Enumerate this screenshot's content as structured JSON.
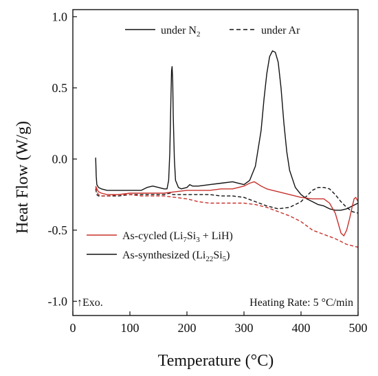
{
  "chart_data": {
    "type": "line",
    "title": "",
    "xlabel": "Temperature (°C)",
    "ylabel": "Heat Flow (W/g)",
    "xlim": [
      0,
      500
    ],
    "ylim": [
      -1.1,
      1.05
    ],
    "xticks": [
      0,
      100,
      200,
      300,
      400,
      500
    ],
    "yticks": [
      -1.0,
      -0.5,
      0.0,
      0.5,
      1.0
    ],
    "xtick_labels": [
      "0",
      "100",
      "200",
      "300",
      "400",
      "500"
    ],
    "ytick_labels": [
      "-1.0",
      "-0.5",
      "0.0",
      "0.5",
      "1.0"
    ],
    "grid": false,
    "legends": {
      "atmosphere": {
        "placement": "top",
        "entries": [
          {
            "label": "under N",
            "sub": "2",
            "style": "solid"
          },
          {
            "label": "under Ar",
            "style": "dashed"
          }
        ]
      },
      "sample": {
        "placement": "lower-left",
        "entries": [
          {
            "prefix": "As-cycled (Li",
            "s1": "7",
            "mid": "Si",
            "s2": "3",
            "suffix": " + LiH)",
            "color": "#c8302a"
          },
          {
            "prefix": "As-synthesized (Li",
            "s1": "22",
            "mid": "Si",
            "s2": "5",
            "suffix": ")",
            "color": "#111111"
          }
        ]
      }
    },
    "annotations": {
      "exo": "↑Exo.",
      "rate": "Heating Rate: 5 °C/min"
    },
    "series": [
      {
        "sample": "As-synthesized",
        "atmosphere": "N2",
        "color": "#111111",
        "dash": false,
        "x": [
          40,
          41,
          42,
          45,
          50,
          60,
          80,
          100,
          120,
          130,
          140,
          150,
          160,
          165,
          168,
          170,
          172,
          173,
          174,
          175,
          176,
          178,
          180,
          185,
          190,
          200,
          205,
          210,
          220,
          240,
          260,
          280,
          300,
          310,
          320,
          330,
          335,
          340,
          345,
          350,
          355,
          360,
          365,
          370,
          375,
          380,
          390,
          400,
          410,
          420,
          430,
          440,
          450,
          460,
          470,
          480,
          490,
          500
        ],
        "y": [
          0.01,
          -0.12,
          -0.18,
          -0.2,
          -0.21,
          -0.22,
          -0.22,
          -0.22,
          -0.22,
          -0.2,
          -0.19,
          -0.2,
          -0.21,
          -0.21,
          -0.15,
          0.05,
          0.45,
          0.62,
          0.65,
          0.55,
          0.3,
          0.0,
          -0.15,
          -0.2,
          -0.21,
          -0.2,
          -0.18,
          -0.19,
          -0.19,
          -0.18,
          -0.17,
          -0.16,
          -0.18,
          -0.15,
          -0.05,
          0.2,
          0.42,
          0.6,
          0.72,
          0.76,
          0.75,
          0.68,
          0.5,
          0.25,
          0.05,
          -0.08,
          -0.2,
          -0.25,
          -0.28,
          -0.3,
          -0.32,
          -0.33,
          -0.35,
          -0.36,
          -0.36,
          -0.35,
          -0.33,
          -0.31
        ]
      },
      {
        "sample": "As-synthesized",
        "atmosphere": "Ar",
        "color": "#111111",
        "dash": true,
        "x": [
          40,
          42,
          45,
          50,
          60,
          80,
          100,
          120,
          140,
          160,
          170,
          173,
          175,
          180,
          200,
          220,
          240,
          260,
          280,
          300,
          320,
          340,
          360,
          380,
          400,
          410,
          420,
          430,
          440,
          450,
          460,
          470,
          480,
          490,
          500
        ],
        "y": [
          -0.21,
          -0.25,
          -0.26,
          -0.26,
          -0.26,
          -0.26,
          -0.25,
          -0.25,
          -0.25,
          -0.25,
          -0.24,
          -0.24,
          -0.25,
          -0.25,
          -0.25,
          -0.25,
          -0.25,
          -0.26,
          -0.26,
          -0.27,
          -0.3,
          -0.33,
          -0.35,
          -0.34,
          -0.3,
          -0.26,
          -0.22,
          -0.2,
          -0.2,
          -0.21,
          -0.25,
          -0.3,
          -0.34,
          -0.37,
          -0.38
        ]
      },
      {
        "sample": "As-cycled",
        "atmosphere": "N2",
        "color": "#c8302a",
        "dash": false,
        "x": [
          40,
          42,
          45,
          50,
          60,
          80,
          100,
          120,
          140,
          160,
          180,
          200,
          220,
          240,
          260,
          280,
          300,
          310,
          318,
          322,
          330,
          340,
          350,
          360,
          380,
          400,
          420,
          440,
          450,
          460,
          465,
          470,
          475,
          480,
          485,
          490,
          493,
          496,
          500
        ],
        "y": [
          -0.19,
          -0.21,
          -0.23,
          -0.24,
          -0.25,
          -0.25,
          -0.24,
          -0.24,
          -0.24,
          -0.24,
          -0.23,
          -0.22,
          -0.22,
          -0.22,
          -0.21,
          -0.21,
          -0.19,
          -0.17,
          -0.16,
          -0.17,
          -0.19,
          -0.21,
          -0.22,
          -0.23,
          -0.25,
          -0.27,
          -0.28,
          -0.28,
          -0.31,
          -0.38,
          -0.45,
          -0.52,
          -0.54,
          -0.5,
          -0.42,
          -0.33,
          -0.28,
          -0.27,
          -0.3
        ]
      },
      {
        "sample": "As-cycled",
        "atmosphere": "Ar",
        "color": "#c8302a",
        "dash": true,
        "x": [
          40,
          42,
          45,
          50,
          60,
          80,
          100,
          120,
          140,
          160,
          180,
          200,
          220,
          240,
          260,
          280,
          300,
          320,
          340,
          360,
          380,
          400,
          420,
          440,
          460,
          480,
          500
        ],
        "y": [
          -0.2,
          -0.23,
          -0.25,
          -0.26,
          -0.26,
          -0.25,
          -0.25,
          -0.26,
          -0.26,
          -0.26,
          -0.27,
          -0.28,
          -0.3,
          -0.31,
          -0.31,
          -0.31,
          -0.31,
          -0.32,
          -0.34,
          -0.37,
          -0.4,
          -0.44,
          -0.5,
          -0.53,
          -0.56,
          -0.6,
          -0.62
        ]
      }
    ]
  }
}
